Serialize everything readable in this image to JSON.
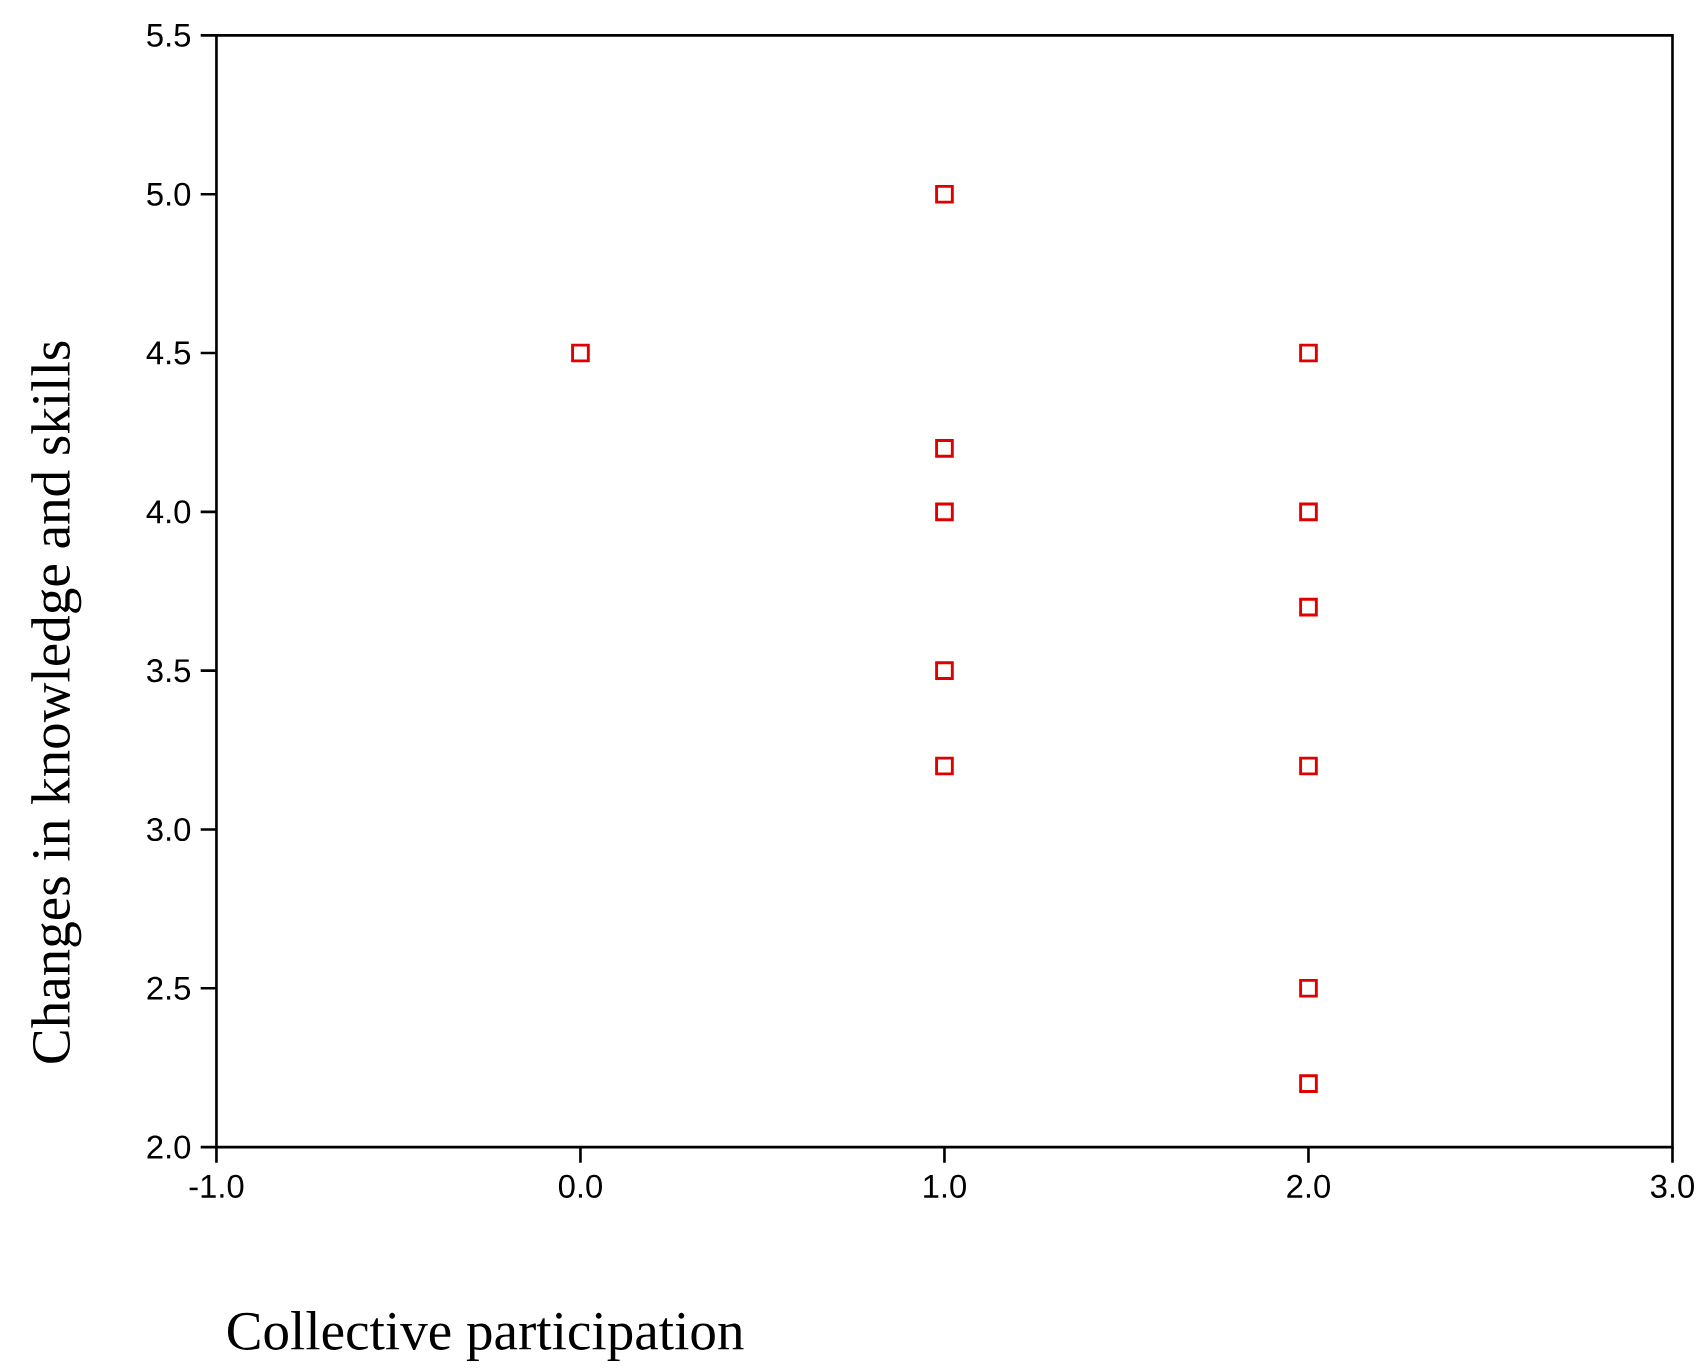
{
  "chart_data": {
    "type": "scatter",
    "xlabel": "Collective participation",
    "ylabel": "Changes in knowledge and skills",
    "x": [
      0,
      1,
      1,
      1,
      1,
      1,
      2,
      2,
      2,
      2,
      2,
      2
    ],
    "values": [
      4.5,
      5.0,
      4.2,
      4.0,
      3.5,
      3.2,
      4.5,
      4.0,
      3.7,
      3.2,
      2.5,
      2.2
    ],
    "color": "#e00000",
    "marker": "square",
    "xlim": [
      -1,
      3
    ],
    "xticks": [
      {
        "value": -1,
        "label": "-1.0"
      },
      {
        "value": 0,
        "label": "0.0"
      },
      {
        "value": 1,
        "label": "1.0"
      },
      {
        "value": 2,
        "label": "2.0"
      },
      {
        "value": 3,
        "label": "3.0"
      }
    ],
    "ylim": [
      2,
      5.5
    ],
    "yticks": [
      {
        "value": 2,
        "label": "2.0"
      },
      {
        "value": 2.5,
        "label": "2.5"
      },
      {
        "value": 3,
        "label": "3.0"
      },
      {
        "value": 3.5,
        "label": "3.5"
      },
      {
        "value": 4,
        "label": "4.0"
      },
      {
        "value": 4.5,
        "label": "4.5"
      },
      {
        "value": 5,
        "label": "5.0"
      },
      {
        "value": 5.5,
        "label": "5.5"
      }
    ],
    "grid": false
  }
}
